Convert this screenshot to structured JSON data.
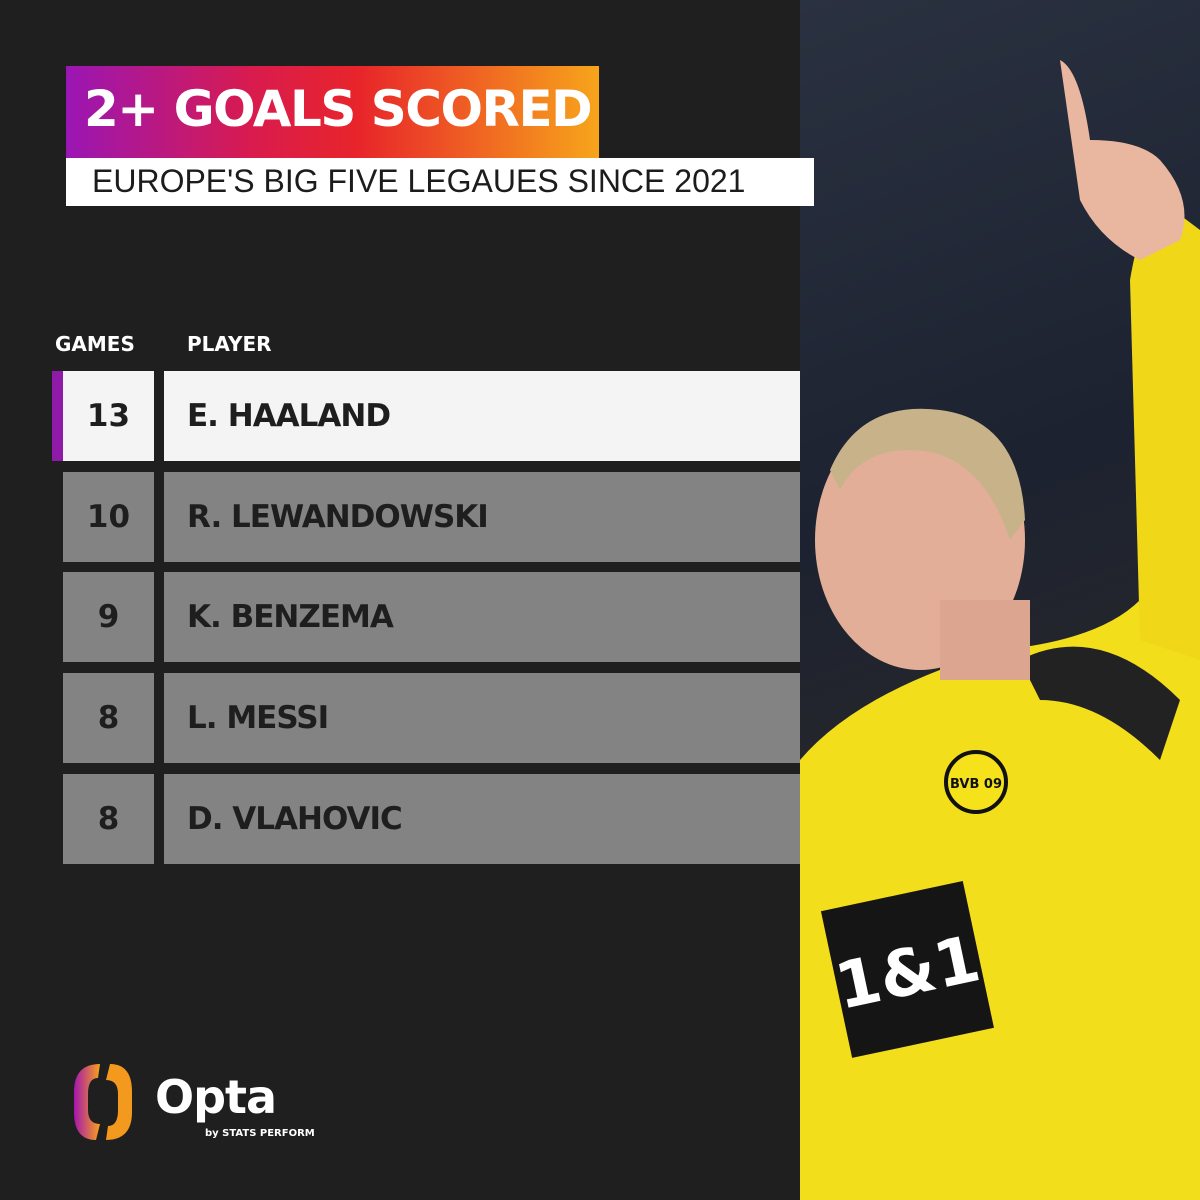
{
  "title": "2+ GOALS SCORED",
  "subtitle": "EUROPE'S  BIG FIVE LEGAUES SINCE 2021",
  "columns": {
    "games": "GAMES",
    "player": "PLAYER"
  },
  "rows": [
    {
      "games": "13",
      "player": "E. HAALAND",
      "highlighted": true
    },
    {
      "games": "10",
      "player": "R. LEWANDOWSKI"
    },
    {
      "games": "9",
      "player": "K. BENZEMA"
    },
    {
      "games": "8",
      "player": "L. MESSI"
    },
    {
      "games": "8",
      "player": "D. VLAHOVIC"
    }
  ],
  "brand": {
    "name": "Opta",
    "tagline": "by STATS PERFORM"
  },
  "photo": {
    "jersey_sponsor": "1&1",
    "crest": "BVB 09"
  },
  "colors": {
    "accent": "#8f1aa8",
    "gradient": [
      "#9a16b4",
      "#e8252a",
      "#f7a51b"
    ],
    "row": "#838383",
    "jersey": "#f5e21b"
  }
}
